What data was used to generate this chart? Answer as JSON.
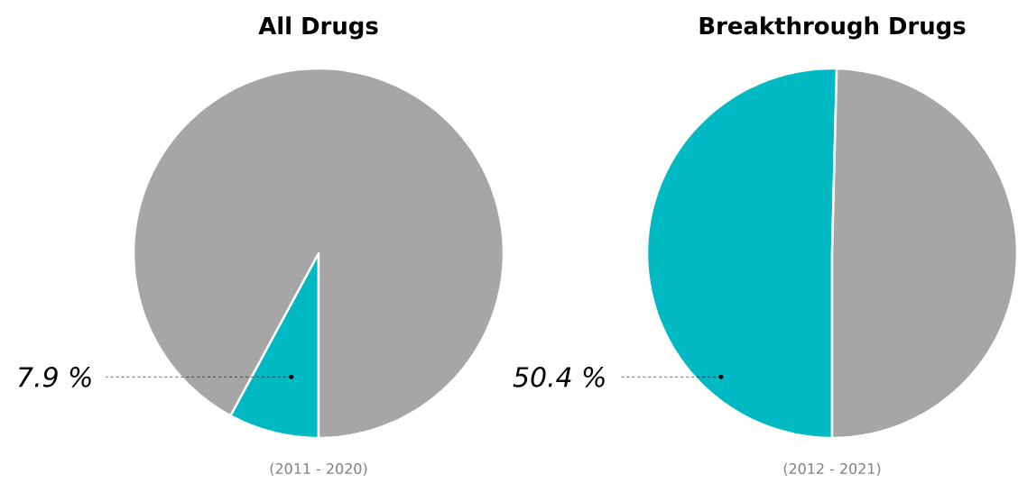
{
  "chart_data": [
    {
      "type": "pie",
      "title": "All Drugs",
      "categories": [
        null,
        null
      ],
      "values": [
        7.9,
        92.1
      ],
      "colors": [
        "#00b9c3",
        "#a6a6a6"
      ],
      "value_labels": [
        "7.9 %",
        null
      ],
      "annotations": [
        "(2011 - 2020)"
      ]
    },
    {
      "type": "pie",
      "title": "Breakthrough Drugs",
      "categories": [
        null,
        null
      ],
      "values": [
        50.4,
        49.6
      ],
      "colors": [
        "#00b9c3",
        "#a6a6a6"
      ],
      "value_labels": [
        "50.4 %",
        null
      ],
      "annotations": [
        "(2012 - 2021)"
      ]
    }
  ]
}
